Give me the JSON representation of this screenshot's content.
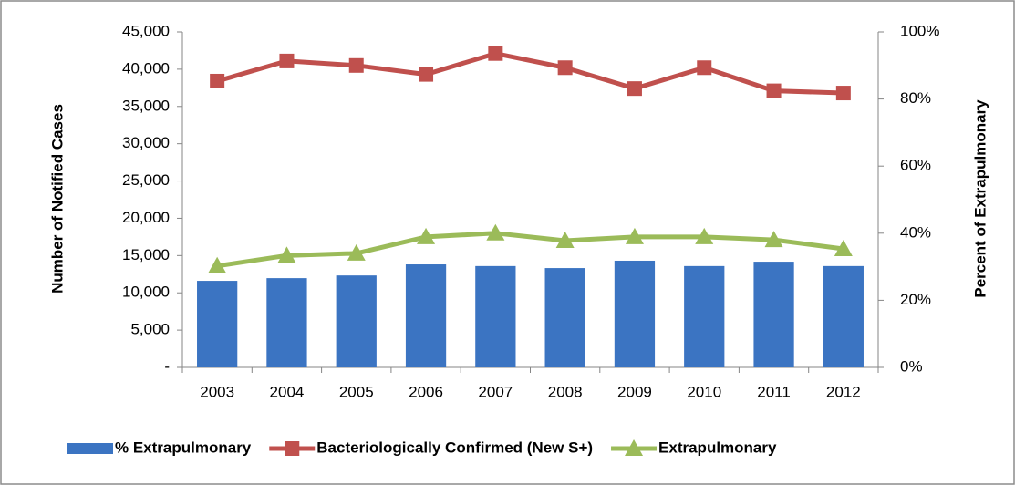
{
  "chart_data": {
    "type": "combo",
    "y_label": "Number of Notified Cases",
    "y2_label": "Percent of Extrapulmonary",
    "categories": [
      "2003",
      "2004",
      "2005",
      "2006",
      "2007",
      "2008",
      "2009",
      "2010",
      "2011",
      "2012"
    ],
    "series": [
      {
        "name": "% Extrapulmonary",
        "type": "bar",
        "axis": "y2",
        "color": "#3b74c2",
        "values": [
          25.8,
          26.6,
          27.4,
          30.7,
          30.2,
          29.6,
          31.8,
          30.2,
          31.5,
          30.2
        ]
      },
      {
        "name": "Bacteriologically Confirmed (New S+)",
        "type": "line",
        "marker": "square",
        "color": "#c0504d",
        "values": [
          38400,
          41100,
          40500,
          39300,
          42100,
          40200,
          37400,
          40200,
          37100,
          36800
        ]
      },
      {
        "name": "Extrapulmonary",
        "type": "line",
        "marker": "triangle",
        "color": "#9bbb59",
        "values": [
          13600,
          15000,
          15300,
          17500,
          18000,
          17000,
          17500,
          17500,
          17100,
          15900
        ]
      }
    ],
    "ylim": [
      0,
      45000
    ],
    "yticks": [
      {
        "value": 0,
        "label": "-"
      },
      {
        "value": 5000,
        "label": "5,000"
      },
      {
        "value": 10000,
        "label": "10,000"
      },
      {
        "value": 15000,
        "label": "15,000"
      },
      {
        "value": 20000,
        "label": "20,000"
      },
      {
        "value": 25000,
        "label": "25,000"
      },
      {
        "value": 30000,
        "label": "30,000"
      },
      {
        "value": 35000,
        "label": "35,000"
      },
      {
        "value": 40000,
        "label": "40,000"
      },
      {
        "value": 45000,
        "label": "45,000"
      }
    ],
    "y2lim": [
      0,
      100
    ],
    "y2ticks": [
      {
        "value": 0,
        "label": "0%"
      },
      {
        "value": 20,
        "label": "20%"
      },
      {
        "value": 40,
        "label": "40%"
      },
      {
        "value": 60,
        "label": "60%"
      },
      {
        "value": 80,
        "label": "80%"
      },
      {
        "value": 100,
        "label": "100%"
      }
    ],
    "legend": "bottom"
  }
}
